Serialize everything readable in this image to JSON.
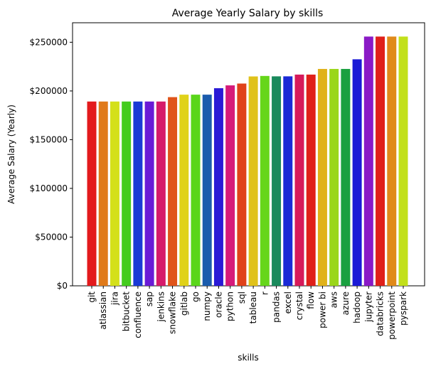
{
  "chart_data": {
    "type": "bar",
    "title": "Average Yearly Salary by skills",
    "xlabel": "skills",
    "ylabel": "Average Salary (Yearly)",
    "ylim": [
      0,
      270000
    ],
    "yticks": [
      "$0",
      "$50000",
      "$100000",
      "$150000",
      "$200000",
      "$250000"
    ],
    "ytick_values": [
      0,
      50000,
      100000,
      150000,
      200000,
      250000
    ],
    "grid": false,
    "categories": [
      "git",
      "atlassian",
      "jira",
      "bitbucket",
      "confluence",
      "sap",
      "jenkins",
      "snowflake",
      "gitlab",
      "go",
      "numpy",
      "oracle",
      "python",
      "sql",
      "tableau",
      "r",
      "pandas",
      "excel",
      "crystal",
      "flow",
      "power bi",
      "aws",
      "azure",
      "hadoop",
      "jupyter",
      "databricks",
      "powerpoint",
      "pyspark"
    ],
    "values": [
      189155,
      189155,
      189155,
      189155,
      189155,
      189155,
      189155,
      193662,
      196200,
      196200,
      196200,
      202817,
      205733,
      207600,
      214900,
      215400,
      215000,
      215000,
      216800,
      216800,
      222600,
      222600,
      222600,
      232500,
      255830,
      255830,
      255830,
      255830
    ],
    "colors": [
      "#e31a1c",
      "#e07a1a",
      "#d4e01a",
      "#44cc1e",
      "#1a3ad6",
      "#6a1ad6",
      "#d61a6a",
      "#e0541a",
      "#e0d21a",
      "#5ad61a",
      "#1a5cad",
      "#2a1ad6",
      "#d61a7a",
      "#e0421a",
      "#e0c21a",
      "#66d61a",
      "#1a8a5c",
      "#1a2ad6",
      "#d61a5a",
      "#e0201a",
      "#e0b21a",
      "#9ad61a",
      "#1aa040",
      "#1a1ad6",
      "#8a1ac6",
      "#e0201a",
      "#e08a1a",
      "#c2e01a"
    ]
  }
}
